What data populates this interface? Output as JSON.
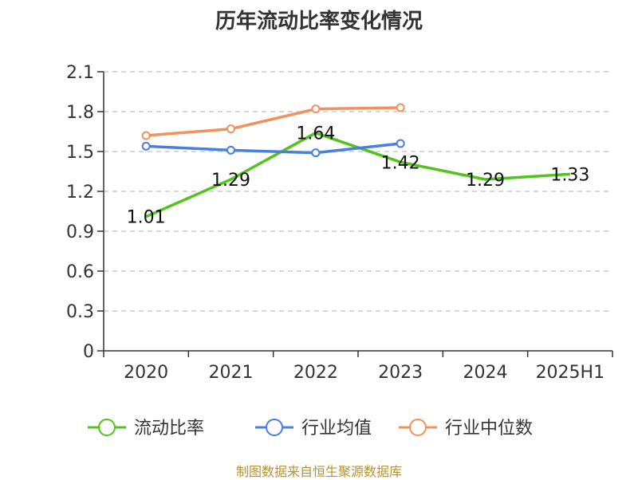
{
  "chart_data": {
    "type": "line",
    "title": "历年流动比率变化情况",
    "categories": [
      "2020",
      "2021",
      "2022",
      "2023",
      "2024",
      "2025H1"
    ],
    "ylim": [
      0,
      2.1
    ],
    "yticks": [
      "0",
      "0.3",
      "0.6",
      "0.9",
      "1.2",
      "1.5",
      "1.8",
      "2.1"
    ],
    "grid": true,
    "legend": "bottom",
    "series": [
      {
        "name": "流动比率",
        "color": "#52c41a",
        "values": [
          1.01,
          1.29,
          1.64,
          1.42,
          1.29,
          1.33
        ],
        "labels": [
          "1.01",
          "1.29",
          "1.64",
          "1.42",
          "1.29",
          "1.33"
        ],
        "markers": false
      },
      {
        "name": "行业均值",
        "color": "#4a7fe0",
        "values": [
          1.54,
          1.51,
          1.49,
          1.56,
          null,
          null
        ],
        "markers": true
      },
      {
        "name": "行业中位数",
        "color": "#f4905a",
        "values": [
          1.62,
          1.67,
          1.82,
          1.83,
          null,
          null
        ],
        "markers": true
      }
    ]
  },
  "source": "制图数据来自恒生聚源数据库"
}
